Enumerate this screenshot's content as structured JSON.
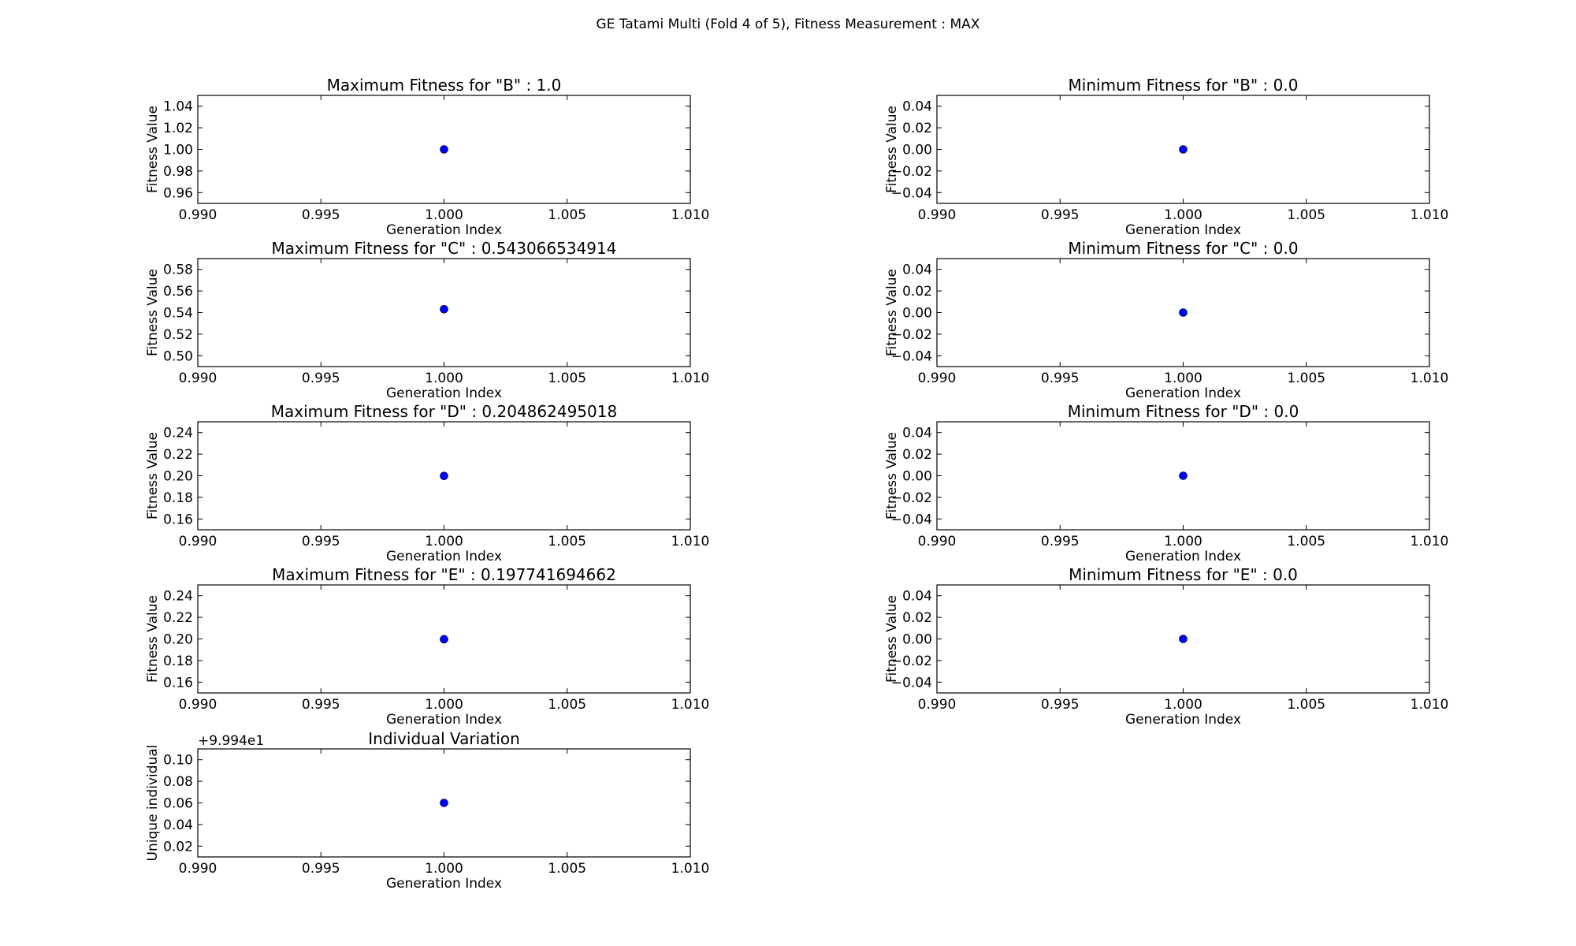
{
  "figure_title": "GE Tatami Multi (Fold 4 of 5), Fitness Measurement : MAX",
  "chart_data": [
    {
      "type": "scatter",
      "title": "Maximum Fitness for \"B\" : 1.0",
      "xlabel": "Generation Index",
      "ylabel": "Fitness Value",
      "xlim": [
        0.99,
        1.01
      ],
      "ylim": [
        0.95,
        1.05
      ],
      "x_ticks": [
        "0.990",
        "0.995",
        "1.000",
        "1.005",
        "1.010"
      ],
      "y_ticks": [
        "0.96",
        "0.98",
        "1.00",
        "1.02",
        "1.04"
      ],
      "x": [
        1.0
      ],
      "y": [
        1.0
      ],
      "grid": false
    },
    {
      "type": "scatter",
      "title": "Minimum Fitness for \"B\" : 0.0",
      "xlabel": "Generation Index",
      "ylabel": "Fitness Value",
      "xlim": [
        0.99,
        1.01
      ],
      "ylim": [
        -0.05,
        0.05
      ],
      "x_ticks": [
        "0.990",
        "0.995",
        "1.000",
        "1.005",
        "1.010"
      ],
      "y_ticks": [
        "−0.04",
        "−0.02",
        "0.00",
        "0.02",
        "0.04"
      ],
      "x": [
        1.0
      ],
      "y": [
        0.0
      ],
      "grid": false
    },
    {
      "type": "scatter",
      "title": "Maximum Fitness for \"C\" : 0.543066534914",
      "xlabel": "Generation Index",
      "ylabel": "Fitness Value",
      "xlim": [
        0.99,
        1.01
      ],
      "ylim": [
        0.49,
        0.59
      ],
      "x_ticks": [
        "0.990",
        "0.995",
        "1.000",
        "1.005",
        "1.010"
      ],
      "y_ticks": [
        "0.50",
        "0.52",
        "0.54",
        "0.56",
        "0.58"
      ],
      "x": [
        1.0
      ],
      "y": [
        0.543066534914
      ],
      "grid": false
    },
    {
      "type": "scatter",
      "title": "Minimum Fitness for \"C\" : 0.0",
      "xlabel": "Generation Index",
      "ylabel": "Fitness Value",
      "xlim": [
        0.99,
        1.01
      ],
      "ylim": [
        -0.05,
        0.05
      ],
      "x_ticks": [
        "0.990",
        "0.995",
        "1.000",
        "1.005",
        "1.010"
      ],
      "y_ticks": [
        "−0.04",
        "−0.02",
        "0.00",
        "0.02",
        "0.04"
      ],
      "x": [
        1.0
      ],
      "y": [
        0.0
      ],
      "grid": false
    },
    {
      "type": "scatter",
      "title": "Maximum Fitness for \"D\" : 0.204862495018",
      "xlabel": "Generation Index",
      "ylabel": "Fitness Value",
      "xlim": [
        0.99,
        1.01
      ],
      "ylim": [
        0.155,
        0.255
      ],
      "x_ticks": [
        "0.990",
        "0.995",
        "1.000",
        "1.005",
        "1.010"
      ],
      "y_ticks": [
        "0.16",
        "0.18",
        "0.20",
        "0.22",
        "0.24"
      ],
      "x": [
        1.0
      ],
      "y": [
        0.204862495018
      ],
      "grid": false
    },
    {
      "type": "scatter",
      "title": "Minimum Fitness for \"D\" : 0.0",
      "xlabel": "Generation Index",
      "ylabel": "Fitness Value",
      "xlim": [
        0.99,
        1.01
      ],
      "ylim": [
        -0.05,
        0.05
      ],
      "x_ticks": [
        "0.990",
        "0.995",
        "1.000",
        "1.005",
        "1.010"
      ],
      "y_ticks": [
        "−0.04",
        "−0.02",
        "0.00",
        "0.02",
        "0.04"
      ],
      "x": [
        1.0
      ],
      "y": [
        0.0
      ],
      "grid": false
    },
    {
      "type": "scatter",
      "title": "Maximum Fitness for \"E\" : 0.197741694662",
      "xlabel": "Generation Index",
      "ylabel": "Fitness Value",
      "xlim": [
        0.99,
        1.01
      ],
      "ylim": [
        0.148,
        0.248
      ],
      "x_ticks": [
        "0.990",
        "0.995",
        "1.000",
        "1.005",
        "1.010"
      ],
      "y_ticks": [
        "0.16",
        "0.18",
        "0.20",
        "0.22",
        "0.24"
      ],
      "x": [
        1.0
      ],
      "y": [
        0.197741694662
      ],
      "grid": false
    },
    {
      "type": "scatter",
      "title": "Minimum Fitness for \"E\" : 0.0",
      "xlabel": "Generation Index",
      "ylabel": "Fitness Value",
      "xlim": [
        0.99,
        1.01
      ],
      "ylim": [
        -0.05,
        0.05
      ],
      "x_ticks": [
        "0.990",
        "0.995",
        "1.000",
        "1.005",
        "1.010"
      ],
      "y_ticks": [
        "−0.04",
        "−0.02",
        "0.00",
        "0.02",
        "0.04"
      ],
      "x": [
        1.0
      ],
      "y": [
        0.0
      ],
      "grid": false
    },
    {
      "type": "scatter",
      "title": "Individual Variation",
      "xlabel": "Generation Index",
      "ylabel": "Unique individual",
      "y_offset": "+9.994e1",
      "xlim": [
        0.99,
        1.01
      ],
      "ylim": [
        0.01,
        0.11
      ],
      "x_ticks": [
        "0.990",
        "0.995",
        "1.000",
        "1.005",
        "1.010"
      ],
      "y_ticks": [
        "0.02",
        "0.04",
        "0.06",
        "0.08",
        "0.10"
      ],
      "x": [
        1.0
      ],
      "y": [
        0.06
      ],
      "grid": false
    }
  ],
  "colors": {
    "point": "#0000ff",
    "axes": "#000000",
    "background": "#ffffff"
  }
}
